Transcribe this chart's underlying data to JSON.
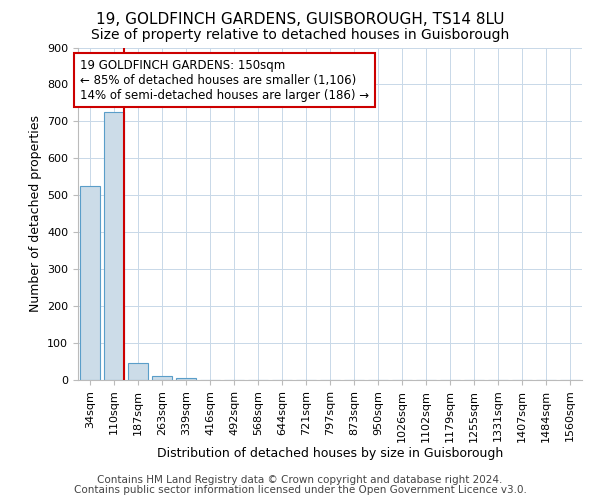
{
  "title": "19, GOLDFINCH GARDENS, GUISBOROUGH, TS14 8LU",
  "subtitle": "Size of property relative to detached houses in Guisborough",
  "xlabel": "Distribution of detached houses by size in Guisborough",
  "ylabel": "Number of detached properties",
  "categories": [
    "34sqm",
    "110sqm",
    "187sqm",
    "263sqm",
    "339sqm",
    "416sqm",
    "492sqm",
    "568sqm",
    "644sqm",
    "721sqm",
    "797sqm",
    "873sqm",
    "950sqm",
    "1026sqm",
    "1102sqm",
    "1179sqm",
    "1255sqm",
    "1331sqm",
    "1407sqm",
    "1484sqm",
    "1560sqm"
  ],
  "values": [
    525,
    725,
    45,
    10,
    5,
    0,
    0,
    0,
    0,
    0,
    0,
    0,
    0,
    0,
    0,
    0,
    0,
    0,
    0,
    0,
    0
  ],
  "bar_color": "#ccdce8",
  "bar_edge_color": "#5a9ec9",
  "property_line_x": 1.42,
  "property_line_color": "#cc0000",
  "annotation_text": "19 GOLDFINCH GARDENS: 150sqm\n← 85% of detached houses are smaller (1,106)\n14% of semi-detached houses are larger (186) →",
  "annotation_box_color": "#cc0000",
  "ylim": [
    0,
    900
  ],
  "yticks": [
    0,
    100,
    200,
    300,
    400,
    500,
    600,
    700,
    800,
    900
  ],
  "footnote1": "Contains HM Land Registry data © Crown copyright and database right 2024.",
  "footnote2": "Contains public sector information licensed under the Open Government Licence v3.0.",
  "title_fontsize": 11,
  "subtitle_fontsize": 10,
  "axis_label_fontsize": 9,
  "tick_fontsize": 8,
  "annotation_fontsize": 8.5,
  "footnote_fontsize": 7.5
}
